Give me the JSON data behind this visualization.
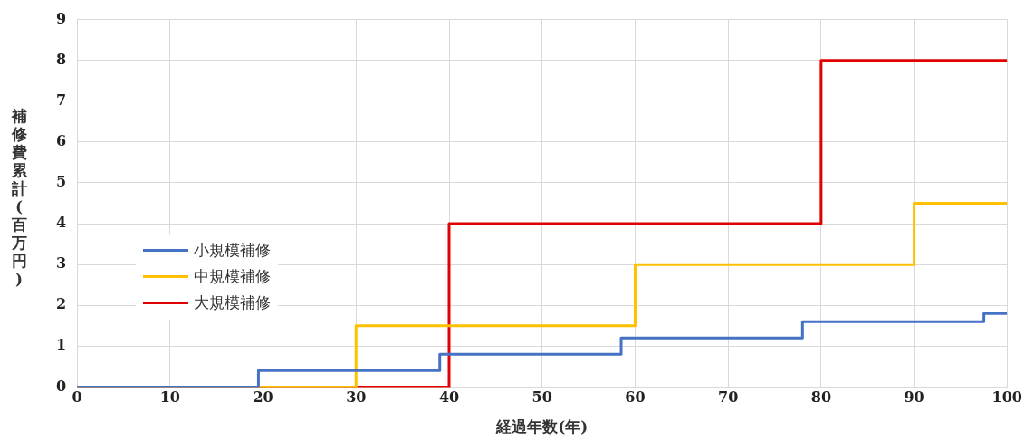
{
  "chart_data": {
    "type": "step",
    "xlabel": "経過年数(年)",
    "ylabel": "補修費累計(百万円)",
    "xlim": [
      0,
      100
    ],
    "xticks": [
      0,
      10,
      20,
      30,
      40,
      50,
      60,
      70,
      80,
      90,
      100
    ],
    "ylim": [
      0,
      9
    ],
    "yticks": [
      0,
      1,
      2,
      3,
      4,
      5,
      6,
      7,
      8,
      9
    ],
    "grid": true,
    "legend": "left",
    "series": [
      {
        "name": "小規模補修",
        "color": "#4472c4",
        "x": [
          0,
          19.5,
          39,
          58.5,
          78,
          97.5,
          100
        ],
        "values": [
          0,
          0.4,
          0.8,
          1.2,
          1.6,
          1.8,
          1.8
        ]
      },
      {
        "name": "中規模補修",
        "color": "#ffc000",
        "x": [
          0,
          30,
          60,
          90,
          100
        ],
        "values": [
          0,
          1.5,
          3,
          4.5,
          4.5
        ]
      },
      {
        "name": "大規模補修",
        "color": "#e00000",
        "x": [
          0,
          40,
          80,
          100
        ],
        "values": [
          0,
          4,
          8,
          8
        ]
      }
    ]
  }
}
